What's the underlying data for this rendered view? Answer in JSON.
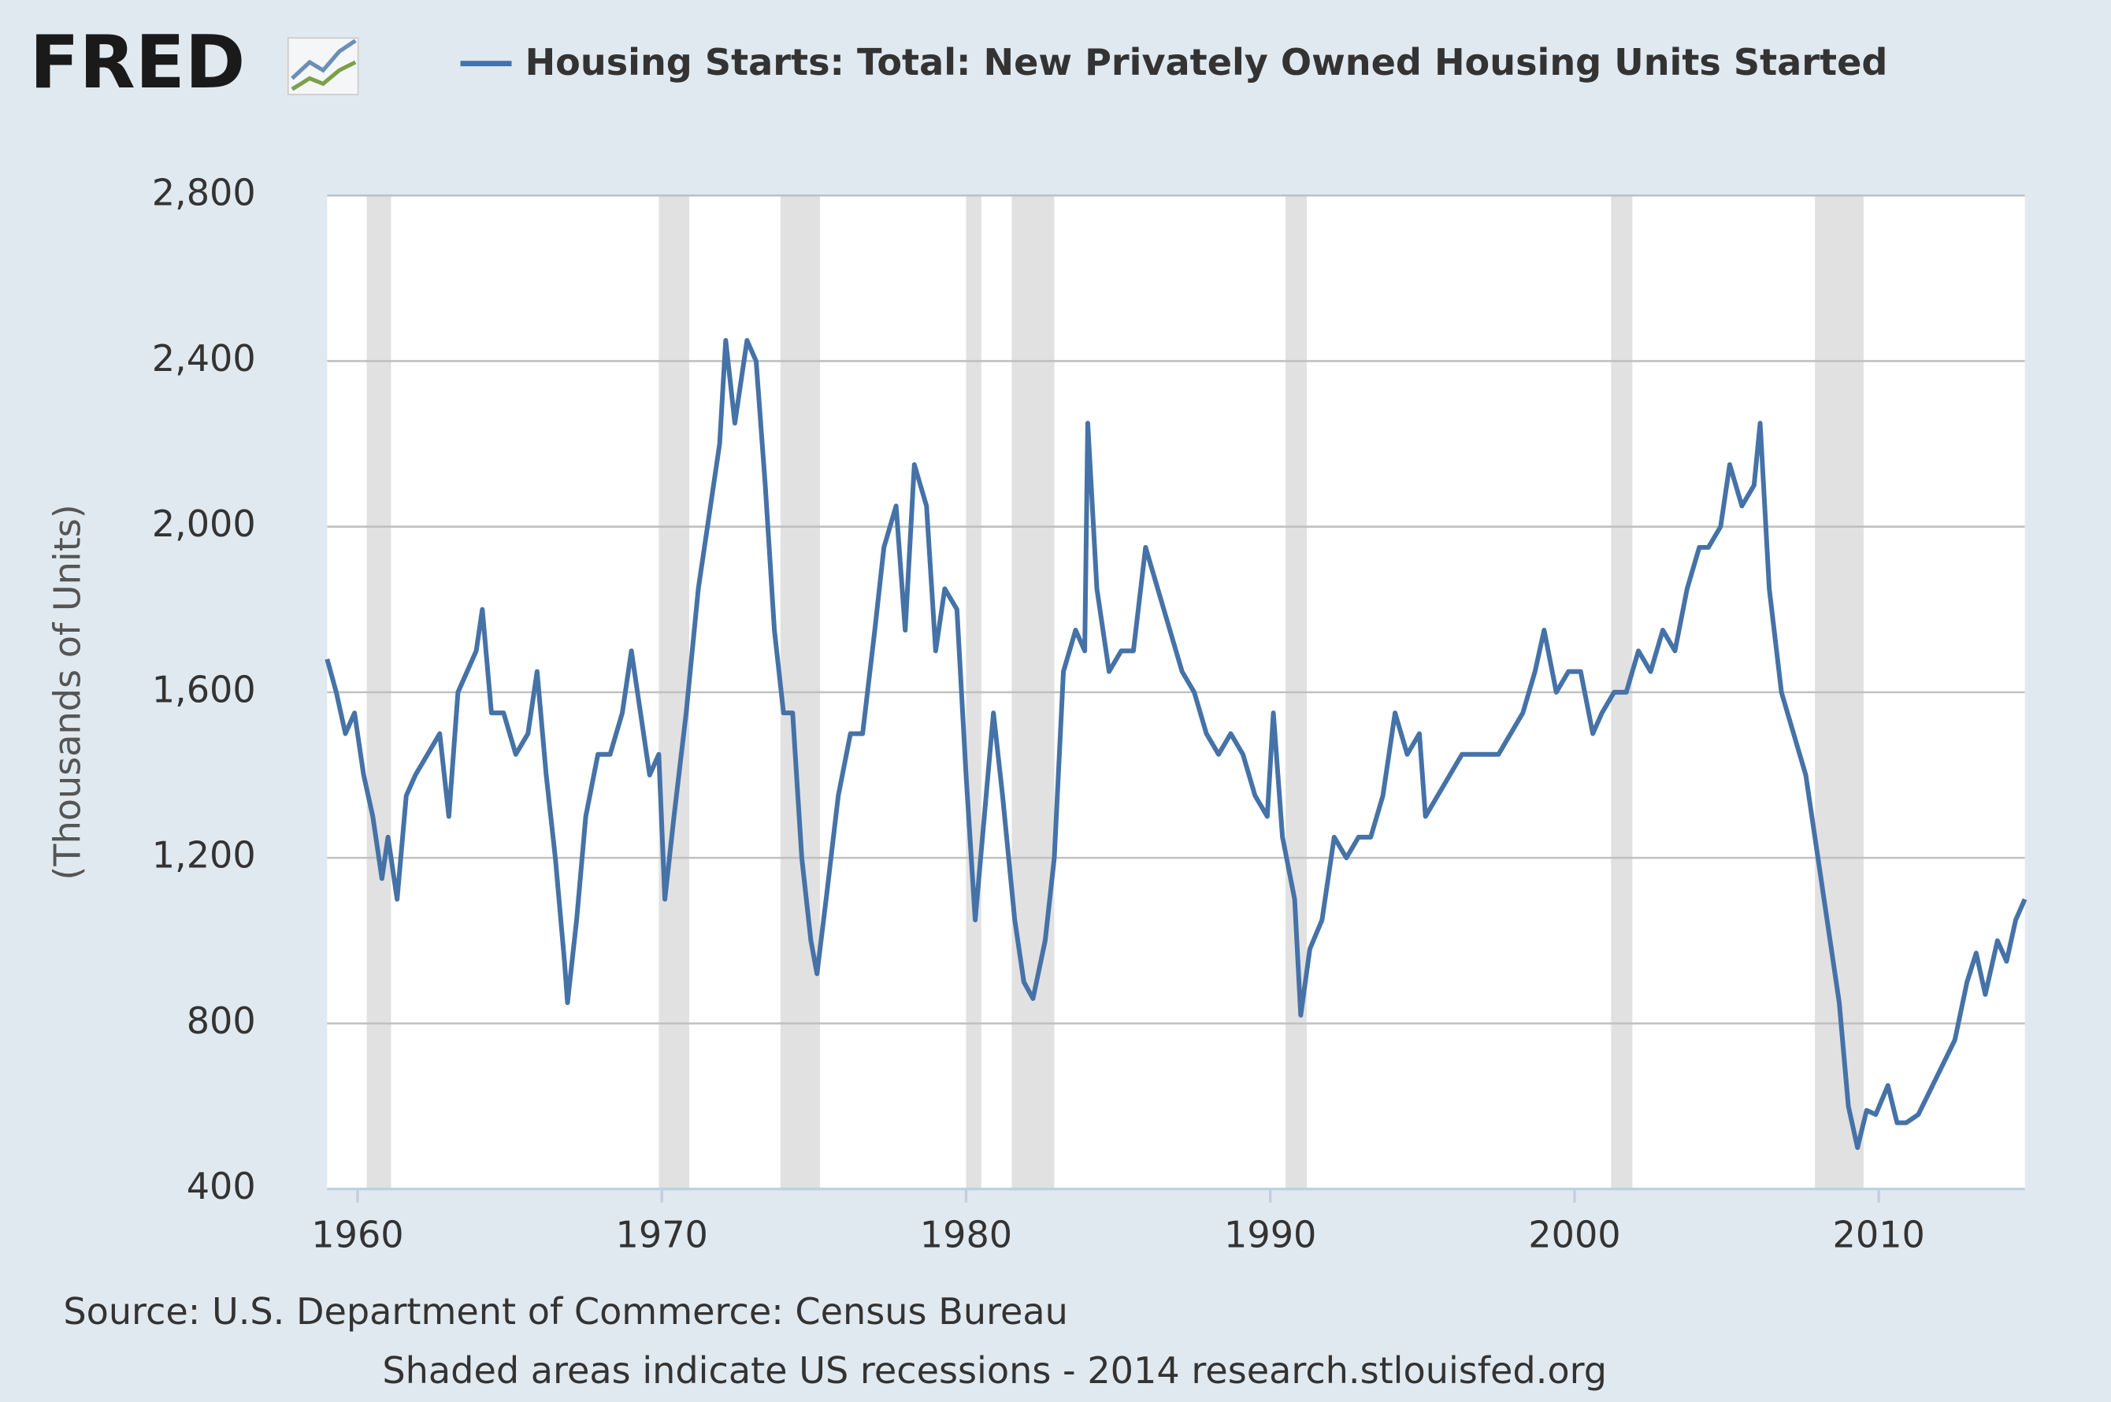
{
  "logo": "FRED",
  "chart_data": {
    "type": "line",
    "y_label": "(Thousands of Units)",
    "source": "Source: U.S. Department of Commerce: Census Bureau",
    "note": "Shaded areas indicate US recessions - 2014 research.stlouisfed.org",
    "xlim": [
      1959,
      2014.8
    ],
    "xticks": [
      1960,
      1970,
      1980,
      1990,
      2000,
      2010
    ],
    "ylim": [
      400,
      2800
    ],
    "yticks": [
      400,
      800,
      {
        "value": 1200,
        "label": "1,200"
      },
      {
        "value": 1600,
        "label": "1,600"
      },
      {
        "value": 2000,
        "label": "2,000"
      },
      {
        "value": 2400,
        "label": "2,400"
      },
      {
        "value": 2800,
        "label": "2,800"
      }
    ],
    "grid": true,
    "recessions": [
      [
        1960.3,
        1961.1
      ],
      [
        1969.9,
        1970.9
      ],
      [
        1973.9,
        1975.2
      ],
      [
        1980.0,
        1980.5
      ],
      [
        1981.5,
        1982.9
      ],
      [
        1990.5,
        1991.2
      ],
      [
        2001.2,
        2001.9
      ],
      [
        2007.9,
        2009.5
      ]
    ],
    "recession_color": "#e1e1e1",
    "x": [
      1959.0,
      1959.3,
      1959.6,
      1959.9,
      1960.2,
      1960.5,
      1960.8,
      1961.0,
      1961.3,
      1961.6,
      1961.9,
      1962.3,
      1962.7,
      1963.0,
      1963.3,
      1963.6,
      1963.9,
      1964.1,
      1964.4,
      1964.8,
      1965.2,
      1965.6,
      1965.9,
      1966.2,
      1966.5,
      1966.8,
      1966.9,
      1967.2,
      1967.5,
      1967.9,
      1968.3,
      1968.7,
      1969.0,
      1969.3,
      1969.6,
      1969.9,
      1970.1,
      1970.4,
      1970.8,
      1971.2,
      1971.6,
      1971.9,
      1972.1,
      1972.4,
      1972.8,
      1973.1,
      1973.4,
      1973.7,
      1974.0,
      1974.3,
      1974.6,
      1974.9,
      1975.1,
      1975.4,
      1975.8,
      1976.2,
      1976.6,
      1977.0,
      1977.3,
      1977.7,
      1978.0,
      1978.3,
      1978.7,
      1979.0,
      1979.3,
      1979.7,
      1980.0,
      1980.3,
      1980.6,
      1980.9,
      1981.2,
      1981.6,
      1981.9,
      1982.2,
      1982.6,
      1982.9,
      1983.2,
      1983.6,
      1983.9,
      1984.0,
      1984.3,
      1984.7,
      1985.1,
      1985.5,
      1985.9,
      1986.3,
      1986.7,
      1987.1,
      1987.5,
      1987.9,
      1988.3,
      1988.7,
      1989.1,
      1989.5,
      1989.9,
      1990.1,
      1990.4,
      1990.8,
      1991.0,
      1991.3,
      1991.7,
      1992.1,
      1992.5,
      1992.9,
      1993.3,
      1993.7,
      1994.1,
      1994.5,
      1994.9,
      1995.1,
      1995.5,
      1995.9,
      1996.3,
      1996.7,
      1997.1,
      1997.5,
      1997.9,
      1998.3,
      1998.7,
      1999.0,
      1999.4,
      1999.8,
      2000.2,
      2000.6,
      2000.9,
      2001.3,
      2001.7,
      2002.1,
      2002.5,
      2002.9,
      2003.3,
      2003.7,
      2004.1,
      2004.4,
      2004.8,
      2005.1,
      2005.5,
      2005.9,
      2006.1,
      2006.4,
      2006.8,
      2007.2,
      2007.6,
      2007.9,
      2008.3,
      2008.7,
      2009.0,
      2009.3,
      2009.6,
      2009.9,
      2010.3,
      2010.6,
      2010.9,
      2011.3,
      2011.7,
      2012.1,
      2012.5,
      2012.9,
      2013.2,
      2013.5,
      2013.9,
      2014.2,
      2014.5,
      2014.8
    ],
    "series": [
      {
        "name": "Housing Starts: Total: New Privately Owned Housing Units Started",
        "color": "#4572a7",
        "values": [
          1680,
          1600,
          1500,
          1550,
          1400,
          1300,
          1150,
          1250,
          1100,
          1350,
          1400,
          1450,
          1500,
          1300,
          1600,
          1650,
          1700,
          1800,
          1550,
          1550,
          1450,
          1500,
          1650,
          1400,
          1200,
          950,
          850,
          1050,
          1300,
          1450,
          1450,
          1550,
          1700,
          1550,
          1400,
          1450,
          1100,
          1300,
          1550,
          1850,
          2050,
          2200,
          2450,
          2250,
          2450,
          2400,
          2100,
          1750,
          1550,
          1550,
          1200,
          1000,
          920,
          1100,
          1350,
          1500,
          1500,
          1750,
          1950,
          2050,
          1750,
          2150,
          2050,
          1700,
          1850,
          1800,
          1400,
          1050,
          1300,
          1550,
          1350,
          1050,
          900,
          860,
          1000,
          1200,
          1650,
          1750,
          1700,
          2250,
          1850,
          1650,
          1700,
          1700,
          1950,
          1850,
          1750,
          1650,
          1600,
          1500,
          1450,
          1500,
          1450,
          1350,
          1300,
          1550,
          1250,
          1100,
          820,
          980,
          1050,
          1250,
          1200,
          1250,
          1250,
          1350,
          1550,
          1450,
          1500,
          1300,
          1350,
          1400,
          1450,
          1450,
          1450,
          1450,
          1500,
          1550,
          1650,
          1750,
          1600,
          1650,
          1650,
          1500,
          1550,
          1600,
          1600,
          1700,
          1650,
          1750,
          1700,
          1850,
          1950,
          1950,
          2000,
          2150,
          2050,
          2100,
          2250,
          1850,
          1600,
          1500,
          1400,
          1250,
          1050,
          850,
          600,
          500,
          590,
          580,
          650,
          560,
          560,
          580,
          640,
          700,
          760,
          900,
          970,
          870,
          1000,
          950,
          1050,
          1100
        ]
      }
    ]
  }
}
